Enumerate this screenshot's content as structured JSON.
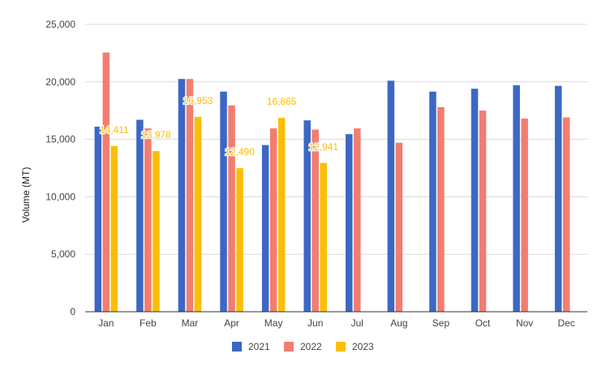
{
  "chart_data": {
    "type": "bar",
    "title": "",
    "xlabel": "",
    "ylabel": "Volume (MT)",
    "ylim": [
      0,
      25000
    ],
    "yticks": [
      0,
      5000,
      10000,
      15000,
      20000,
      25000
    ],
    "ytick_labels": [
      "0",
      "5,000",
      "10,000",
      "15,000",
      "20,000",
      "25,000"
    ],
    "grid": true,
    "legend_position": "bottom",
    "categories": [
      "Jan",
      "Feb",
      "Mar",
      "Apr",
      "May",
      "Jun",
      "Jul",
      "Aug",
      "Sep",
      "Oct",
      "Nov",
      "Dec"
    ],
    "series": [
      {
        "name": "2021",
        "color": "#3c67c5",
        "values": [
          16100,
          16700,
          20250,
          19150,
          14500,
          16650,
          15450,
          20100,
          19150,
          19400,
          19700,
          19650
        ]
      },
      {
        "name": "2022",
        "color": "#f27d70",
        "values": [
          22550,
          15950,
          20250,
          17950,
          15950,
          15850,
          15950,
          14700,
          17800,
          17500,
          16800,
          16900
        ]
      },
      {
        "name": "2023",
        "color": "#fbbe07",
        "values": [
          14411,
          13978,
          16953,
          12490,
          16865,
          12941,
          null,
          null,
          null,
          null,
          null,
          null
        ],
        "data_labels": [
          "14,411",
          "13,978",
          "16,953",
          "12,490",
          "16,865",
          "12,941",
          "",
          "",
          "",
          "",
          "",
          ""
        ]
      }
    ]
  }
}
